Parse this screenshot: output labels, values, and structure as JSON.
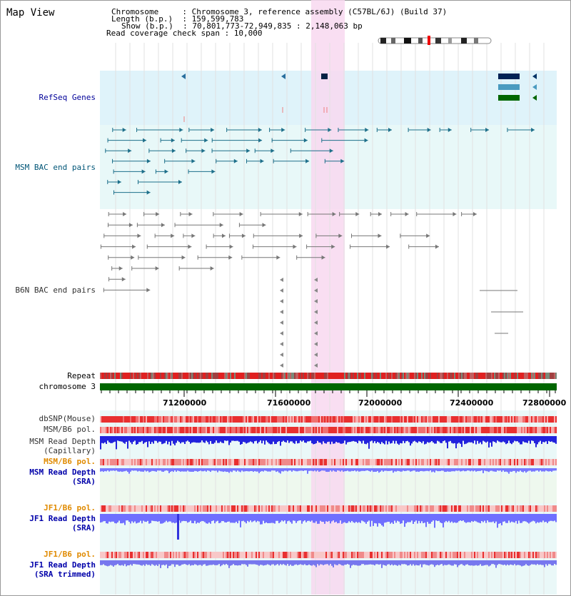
{
  "title": "Map View",
  "info": {
    "lines": [
      "Chromosome     : Chromosome 3, reference assembly (C57BL/6J) (Build 37)",
      "Length (b.p.)  : 159,599,783",
      "Show (b.p.)  : 70,801,773-72,949,835 : 2,148,063 bp",
      "Read coverage check span : 10,000"
    ]
  },
  "ruler": {
    "ticks": [
      "71200000",
      "71600000",
      "72000000",
      "72400000",
      "72800000"
    ]
  },
  "labels": {
    "refseq": "RefSeq Genes",
    "msm_bac": "MSM BAC end pairs",
    "b6n_bac": "B6N BAC end pairs",
    "repeat": "Repeat",
    "chromosome": "chromosome 3",
    "dbsnp": "dbSNP(Mouse)",
    "msm_b6_pol_cap": "MSM/B6 pol.",
    "msm_depth_cap_1": "MSM Read Depth",
    "msm_depth_cap_2": "(Capillary)",
    "msm_b6_pol_sra": "MSM/B6 pol.",
    "msm_depth_sra_1": "MSM Read Depth",
    "msm_depth_sra_2": "(SRA)",
    "jf1_pol_sra": "JF1/B6 pol.",
    "jf1_depth_sra_1": "JF1 Read Depth",
    "jf1_depth_sra_2": "(SRA)",
    "jf1_pol_trim": "JF1/B6 pol.",
    "jf1_depth_trim_1": "JF1 Read Depth",
    "jf1_depth_trim_2": "(SRA trimmed)"
  },
  "colors": {
    "refseq_bg": "#dff3fa",
    "msm_bg": "#e8f8f8",
    "highlight": "#f8d8f0",
    "refseq_label": "#000099",
    "msm_label": "#005577",
    "b6n_label": "#333333",
    "pol_label_msm_cap": "#333333",
    "pol_label_orange": "#e08a00",
    "depth_label_blue": "#0000aa",
    "chromosome_bar": "#006600",
    "depth_capillary": "#2222dd",
    "depth_sra": "#6f6fff",
    "depth_trim": "#7777ee",
    "snp_strong": "#e83030",
    "snp_light": "#f8c0c0"
  }
}
